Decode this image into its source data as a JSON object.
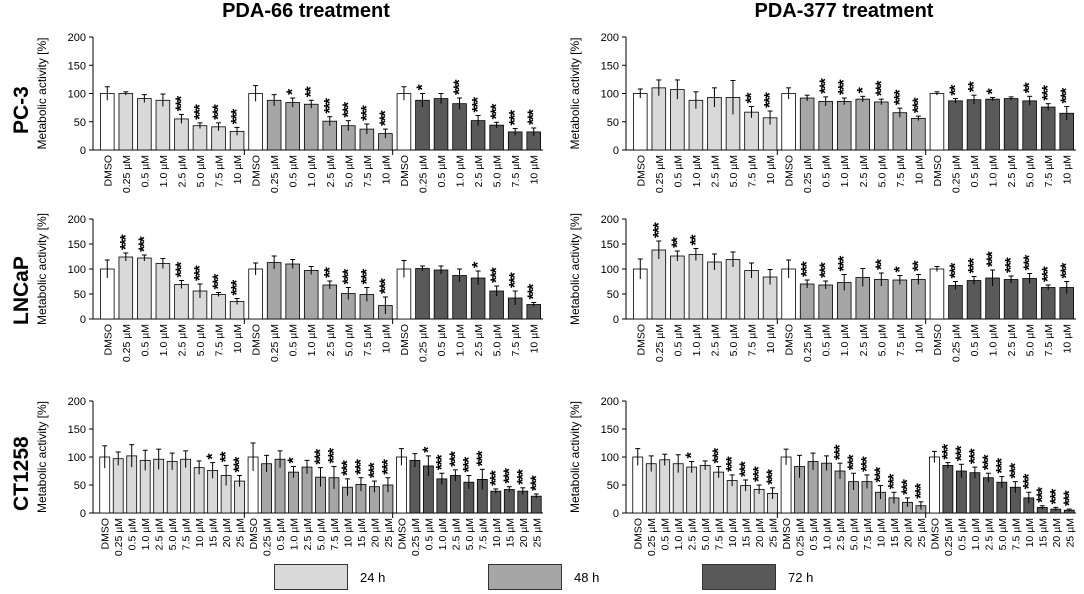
{
  "titles": {
    "left": "PDA-66 treatment",
    "right": "PDA-377 treatment"
  },
  "rows": [
    "PC-3",
    "LNCaP",
    "CT1258"
  ],
  "legend": [
    {
      "label": "24 h",
      "color": "#d9d9d9"
    },
    {
      "label": "48 h",
      "color": "#a6a6a6"
    },
    {
      "label": "72 h",
      "color": "#595959"
    }
  ],
  "chart_data": [
    {
      "type": "bar",
      "title": "PDA-66 treatment — PC-3",
      "ylabel": "Metabolic activity [%]",
      "ylim": [
        0,
        200
      ],
      "yticks": [
        0,
        50,
        100,
        150,
        200
      ],
      "categories": [
        "DMSO",
        "0.25 µM",
        "0.5 µM",
        "1.0 µM",
        "2.5 µM",
        "5.0 µM",
        "7.5 µM",
        "10 µM"
      ],
      "series": [
        {
          "name": "24 h",
          "values": [
            100,
            100,
            91,
            88,
            55,
            43,
            41,
            33
          ],
          "errors": [
            12,
            3,
            7,
            11,
            8,
            5,
            7,
            7
          ],
          "stars": [
            "",
            "",
            "",
            "",
            "***",
            "***",
            "***",
            "***"
          ]
        },
        {
          "name": "48 h",
          "values": [
            100,
            88,
            84,
            81,
            51,
            43,
            37,
            29
          ],
          "errors": [
            14,
            10,
            8,
            7,
            8,
            9,
            9,
            8
          ],
          "stars": [
            "",
            "",
            "*",
            "**",
            "***",
            "***",
            "***",
            "***"
          ]
        },
        {
          "name": "72 h",
          "values": [
            100,
            88,
            91,
            82,
            52,
            44,
            32,
            32
          ],
          "errors": [
            12,
            12,
            9,
            10,
            9,
            5,
            6,
            7
          ],
          "stars": [
            "",
            "*",
            "",
            "***",
            "***",
            "***",
            "***",
            "***"
          ]
        }
      ]
    },
    {
      "type": "bar",
      "title": "PDA-377 treatment — PC-3",
      "ylabel": "Metabolic activity [%]",
      "ylim": [
        0,
        200
      ],
      "yticks": [
        0,
        50,
        100,
        150,
        200
      ],
      "categories": [
        "DMSO",
        "0.25 µM",
        "0.5 µM",
        "1.0 µM",
        "2.5 µM",
        "5.0 µM",
        "7.5 µM",
        "10 µM"
      ],
      "series": [
        {
          "name": "24 h",
          "values": [
            100,
            110,
            107,
            88,
            93,
            93,
            67,
            57
          ],
          "errors": [
            8,
            14,
            17,
            15,
            17,
            30,
            10,
            12
          ],
          "stars": [
            "",
            "",
            "",
            "",
            "",
            "",
            "**",
            "***"
          ]
        },
        {
          "name": "48 h",
          "values": [
            100,
            92,
            86,
            86,
            90,
            85,
            66,
            56
          ],
          "errors": [
            10,
            5,
            8,
            6,
            5,
            5,
            8,
            4
          ],
          "stars": [
            "",
            "",
            "***",
            "***",
            "*",
            "***",
            "***",
            "***"
          ]
        },
        {
          "name": "72 h",
          "values": [
            100,
            87,
            89,
            90,
            91,
            87,
            76,
            65
          ],
          "errors": [
            3,
            4,
            8,
            3,
            3,
            8,
            6,
            12
          ],
          "stars": [
            "",
            "**",
            "**",
            "*",
            "",
            "**",
            "***",
            "***"
          ]
        }
      ]
    },
    {
      "type": "bar",
      "title": "PDA-66 treatment — LNCaP",
      "ylabel": "Metabolic activity [%]",
      "ylim": [
        0,
        200
      ],
      "yticks": [
        0,
        50,
        100,
        150,
        200
      ],
      "categories": [
        "DMSO",
        "0.25 µM",
        "0.5 µM",
        "1.0 µM",
        "2.5 µM",
        "5.0 µM",
        "7.5 µM",
        "10 µM"
      ],
      "series": [
        {
          "name": "24 h",
          "values": [
            100,
            124,
            122,
            111,
            69,
            56,
            49,
            35
          ],
          "errors": [
            18,
            8,
            6,
            10,
            8,
            14,
            4,
            6
          ],
          "stars": [
            "",
            "***",
            "***",
            "",
            "***",
            "***",
            "***",
            "***"
          ]
        },
        {
          "name": "48 h",
          "values": [
            100,
            113,
            110,
            97,
            68,
            51,
            49,
            27
          ],
          "errors": [
            12,
            13,
            9,
            8,
            8,
            12,
            14,
            17
          ],
          "stars": [
            "",
            "",
            "",
            "",
            "**",
            "***",
            "***",
            "***"
          ]
        },
        {
          "name": "72 h",
          "values": [
            100,
            101,
            98,
            87,
            82,
            56,
            42,
            29
          ],
          "errors": [
            17,
            5,
            8,
            13,
            14,
            10,
            14,
            4
          ],
          "stars": [
            "",
            "",
            "",
            "",
            "*",
            "***",
            "***",
            "***"
          ]
        }
      ]
    },
    {
      "type": "bar",
      "title": "PDA-377 treatment — LNCaP",
      "ylabel": "Metabolic activity [%]",
      "ylim": [
        0,
        200
      ],
      "yticks": [
        0,
        50,
        100,
        150,
        200
      ],
      "categories": [
        "DMSO",
        "0.25 µM",
        "0.5 µM",
        "1.0 µM",
        "2.5 µM",
        "5.0 µM",
        "7.5 µM",
        "10 µM"
      ],
      "series": [
        {
          "name": "24 h",
          "values": [
            100,
            138,
            126,
            129,
            114,
            119,
            97,
            84
          ],
          "errors": [
            20,
            18,
            10,
            12,
            16,
            15,
            15,
            15
          ],
          "stars": [
            "",
            "***",
            "**",
            "**",
            "",
            "",
            "",
            ""
          ]
        },
        {
          "name": "48 h",
          "values": [
            100,
            70,
            68,
            73,
            83,
            79,
            78,
            79
          ],
          "errors": [
            18,
            8,
            8,
            16,
            18,
            13,
            9,
            10
          ],
          "stars": [
            "",
            "***",
            "***",
            "***",
            "",
            "**",
            "*",
            "**"
          ]
        },
        {
          "name": "72 h",
          "values": [
            100,
            67,
            77,
            82,
            79,
            81,
            63,
            63
          ],
          "errors": [
            5,
            8,
            8,
            16,
            7,
            10,
            5,
            12
          ],
          "stars": [
            "",
            "***",
            "***",
            "***",
            "***",
            "***",
            "***",
            "***"
          ]
        }
      ]
    },
    {
      "type": "bar",
      "title": "PDA-66 treatment — CT1258",
      "ylabel": "Metabolic activity [%]",
      "ylim": [
        0,
        200
      ],
      "yticks": [
        0,
        50,
        100,
        150,
        200
      ],
      "categories": [
        "DMSO",
        "0.25 µM",
        "0.5 µM",
        "1.0 µM",
        "2.5 µM",
        "5.0 µM",
        "7.5 µM",
        "10 µM",
        "15 µM",
        "20 µM",
        "25 µM"
      ],
      "series": [
        {
          "name": "24 h",
          "values": [
            100,
            97,
            102,
            94,
            96,
            92,
            96,
            81,
            76,
            67,
            57
          ],
          "errors": [
            20,
            12,
            20,
            18,
            18,
            15,
            15,
            12,
            14,
            18,
            10
          ],
          "stars": [
            "",
            "",
            "",
            "",
            "",
            "",
            "",
            "",
            "*",
            "**",
            "***"
          ]
        },
        {
          "name": "48 h",
          "values": [
            100,
            88,
            96,
            73,
            82,
            64,
            63,
            46,
            51,
            47,
            50
          ],
          "errors": [
            25,
            15,
            15,
            10,
            12,
            17,
            20,
            15,
            12,
            10,
            13
          ],
          "stars": [
            "",
            "",
            "",
            "*",
            "",
            "***",
            "***",
            "***",
            "***",
            "***",
            "***"
          ]
        },
        {
          "name": "72 h",
          "values": [
            100,
            94,
            84,
            61,
            67,
            55,
            60,
            39,
            42,
            39,
            30
          ],
          "errors": [
            15,
            12,
            18,
            10,
            10,
            12,
            18,
            4,
            5,
            6,
            4
          ],
          "stars": [
            "",
            "",
            "*",
            "***",
            "***",
            "***",
            "***",
            "***",
            "***",
            "***",
            "***"
          ]
        }
      ]
    },
    {
      "type": "bar",
      "title": "PDA-377 treatment — CT1258",
      "ylabel": "Metabolic activity [%]",
      "ylim": [
        0,
        200
      ],
      "yticks": [
        0,
        50,
        100,
        150,
        200
      ],
      "categories": [
        "DMSO",
        "0.25 µM",
        "0.5 µM",
        "1.0 µM",
        "2.5 µM",
        "5.0 µM",
        "7.5 µM",
        "10 µM",
        "15 µM",
        "20 µM",
        "25 µM"
      ],
      "series": [
        {
          "name": "24 h",
          "values": [
            100,
            88,
            95,
            88,
            82,
            85,
            73,
            58,
            49,
            42,
            35
          ],
          "errors": [
            15,
            14,
            10,
            16,
            10,
            8,
            10,
            10,
            10,
            8,
            10
          ],
          "stars": [
            "",
            "",
            "",
            "",
            "*",
            "",
            "***",
            "***",
            "***",
            "***",
            "***"
          ]
        },
        {
          "name": "48 h",
          "values": [
            100,
            83,
            92,
            89,
            75,
            56,
            56,
            37,
            27,
            19,
            13
          ],
          "errors": [
            14,
            20,
            15,
            13,
            14,
            15,
            12,
            12,
            10,
            8,
            7
          ],
          "stars": [
            "",
            "",
            "",
            "",
            "***",
            "***",
            "***",
            "***",
            "***",
            "***",
            "***"
          ]
        },
        {
          "name": "72 h",
          "values": [
            100,
            85,
            75,
            72,
            63,
            55,
            46,
            27,
            10,
            7,
            5
          ],
          "errors": [
            10,
            5,
            12,
            10,
            8,
            10,
            10,
            10,
            3,
            3,
            2
          ],
          "stars": [
            "",
            "***",
            "***",
            "***",
            "***",
            "***",
            "***",
            "***",
            "***",
            "***",
            "***"
          ]
        }
      ]
    }
  ]
}
